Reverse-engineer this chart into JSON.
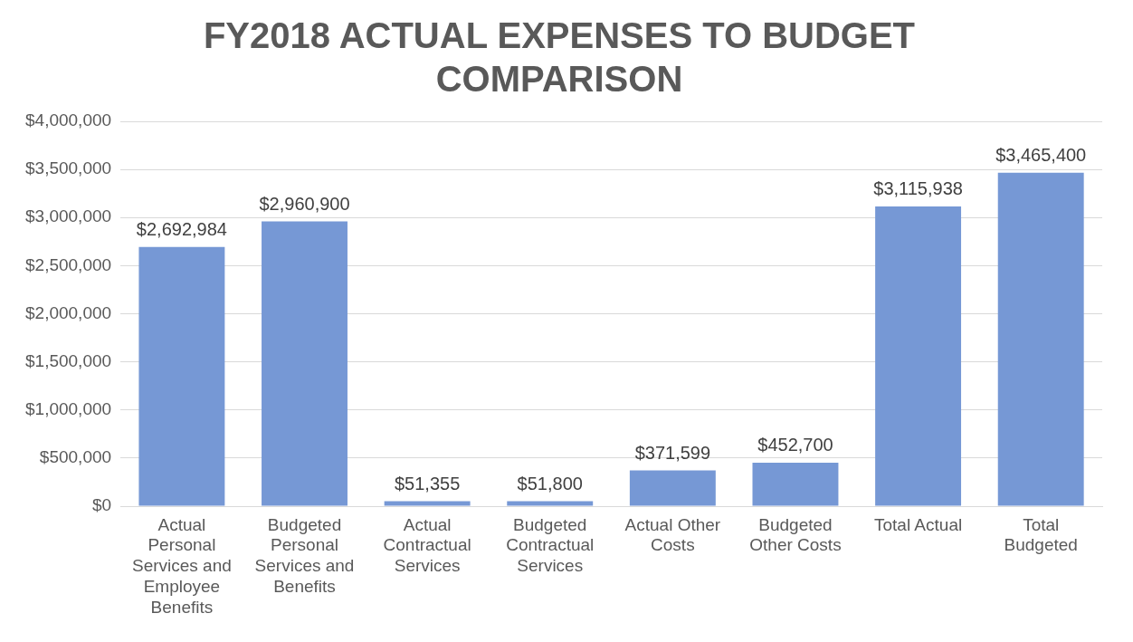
{
  "chart_data": {
    "type": "bar",
    "title": "FY2018 ACTUAL EXPENSES TO BUDGET COMPARISON",
    "categories": [
      "Actual Personal Services and Employee Benefits",
      "Budgeted Personal Services and Benefits",
      "Actual Contractual Services",
      "Budgeted Contractual Services",
      "Actual Other Costs",
      "Budgeted Other Costs",
      "Total Actual",
      "Total Budgeted"
    ],
    "values": [
      2692984,
      2960900,
      51355,
      51800,
      371599,
      452700,
      3115938,
      3465400
    ],
    "value_labels": [
      "$2,692,984",
      "$2,960,900",
      "$51,355",
      "$51,800",
      "$371,599",
      "$452,700",
      "$3,115,938",
      "$3,465,400"
    ],
    "color": "#7698d5",
    "ylim": [
      0,
      4000000
    ],
    "yticks": [
      {
        "value": 0,
        "label": "$0"
      },
      {
        "value": 500000,
        "label": "$500,000"
      },
      {
        "value": 1000000,
        "label": "$1,000,000"
      },
      {
        "value": 1500000,
        "label": "$1,500,000"
      },
      {
        "value": 2000000,
        "label": "$2,000,000"
      },
      {
        "value": 2500000,
        "label": "$2,500,000"
      },
      {
        "value": 3000000,
        "label": "$3,000,000"
      },
      {
        "value": 3500000,
        "label": "$3,500,000"
      },
      {
        "value": 4000000,
        "label": "$4,000,000"
      }
    ],
    "grid": "y",
    "legend": false
  }
}
